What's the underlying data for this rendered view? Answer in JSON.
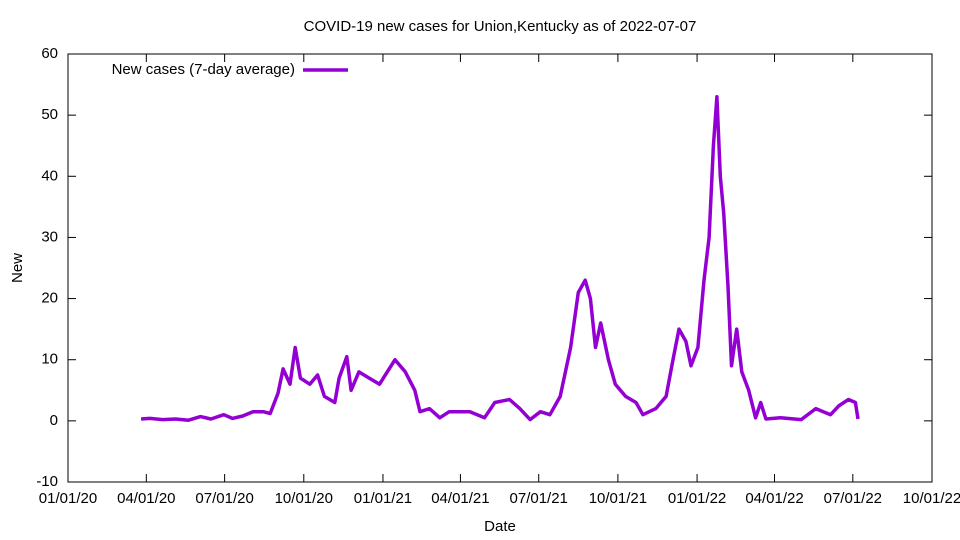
{
  "chart_data": {
    "type": "line",
    "title": "COVID-19 new cases for Union,Kentucky as of 2022-07-07",
    "x_label": "Date",
    "y_label": "New",
    "x": [
      "2020-03-26",
      "2020-04-05",
      "2020-04-20",
      "2020-05-05",
      "2020-05-20",
      "2020-06-03",
      "2020-06-15",
      "2020-06-30",
      "2020-07-10",
      "2020-07-22",
      "2020-08-03",
      "2020-08-15",
      "2020-08-23",
      "2020-09-01",
      "2020-09-07",
      "2020-09-15",
      "2020-09-21",
      "2020-09-27",
      "2020-10-08",
      "2020-10-17",
      "2020-10-25",
      "2020-11-06",
      "2020-11-11",
      "2020-11-20",
      "2020-11-25",
      "2020-12-04",
      "2020-12-16",
      "2020-12-28",
      "2021-01-15",
      "2021-01-27",
      "2021-02-07",
      "2021-02-13",
      "2021-02-24",
      "2021-03-08",
      "2021-03-19",
      "2021-04-12",
      "2021-04-29",
      "2021-05-11",
      "2021-05-28",
      "2021-06-09",
      "2021-06-21",
      "2021-07-03",
      "2021-07-14",
      "2021-07-26",
      "2021-08-07",
      "2021-08-16",
      "2021-08-24",
      "2021-08-30",
      "2021-09-05",
      "2021-09-11",
      "2021-09-20",
      "2021-09-28",
      "2021-10-10",
      "2021-10-22",
      "2021-10-30",
      "2021-11-14",
      "2021-11-26",
      "2021-12-04",
      "2021-12-11",
      "2021-12-19",
      "2021-12-25",
      "2022-01-02",
      "2022-01-09",
      "2022-01-15",
      "2022-01-20",
      "2022-01-24",
      "2022-01-28",
      "2022-02-01",
      "2022-02-06",
      "2022-02-10",
      "2022-02-16",
      "2022-02-22",
      "2022-03-02",
      "2022-03-10",
      "2022-03-16",
      "2022-03-22",
      "2022-04-08",
      "2022-05-02",
      "2022-05-19",
      "2022-06-05",
      "2022-06-15",
      "2022-06-26",
      "2022-07-04",
      "2022-07-07"
    ],
    "series": [
      {
        "name": "New cases (7-day average)",
        "color": "#9400d3",
        "values": [
          0.3,
          0.4,
          0.2,
          0.3,
          0.1,
          0.7,
          0.3,
          1.0,
          0.4,
          0.8,
          1.5,
          1.5,
          1.2,
          4.5,
          8.5,
          6.0,
          12.0,
          7.0,
          6.0,
          7.5,
          4.0,
          3.0,
          7.0,
          10.5,
          5.0,
          8.0,
          7.0,
          6.0,
          10.0,
          8.0,
          5.0,
          1.5,
          2.0,
          0.5,
          1.5,
          1.5,
          0.5,
          3.0,
          3.5,
          2.0,
          0.2,
          1.5,
          1.0,
          4.0,
          12.0,
          21.0,
          23.0,
          20.0,
          12.0,
          16.0,
          10.0,
          6.0,
          4.0,
          3.0,
          1.0,
          2.0,
          4.0,
          10.0,
          15.0,
          13.0,
          9.0,
          12.0,
          23.0,
          30.0,
          45.0,
          53.0,
          40.0,
          34.0,
          22.0,
          9.0,
          15.0,
          8.0,
          5.0,
          0.5,
          3.0,
          0.3,
          0.5,
          0.2,
          2.0,
          1.0,
          2.5,
          3.5,
          3.0,
          0.3
        ]
      }
    ],
    "xlim": [
      "2020-01-01",
      "2022-10-01"
    ],
    "xticks": [
      {
        "value": "2020-01-01",
        "label": "01/01/20"
      },
      {
        "value": "2020-04-01",
        "label": "04/01/20"
      },
      {
        "value": "2020-07-01",
        "label": "07/01/20"
      },
      {
        "value": "2020-10-01",
        "label": "10/01/20"
      },
      {
        "value": "2021-01-01",
        "label": "01/01/21"
      },
      {
        "value": "2021-04-01",
        "label": "04/01/21"
      },
      {
        "value": "2021-07-01",
        "label": "07/01/21"
      },
      {
        "value": "2021-10-01",
        "label": "10/01/21"
      },
      {
        "value": "2022-01-01",
        "label": "01/01/22"
      },
      {
        "value": "2022-04-01",
        "label": "04/01/22"
      },
      {
        "value": "2022-07-01",
        "label": "07/01/22"
      },
      {
        "value": "2022-10-01",
        "label": "10/01/22"
      }
    ],
    "ylim": [
      -10,
      60
    ],
    "yticks": [
      -10,
      0,
      10,
      20,
      30,
      40,
      50,
      60
    ],
    "legend": "top-left"
  }
}
